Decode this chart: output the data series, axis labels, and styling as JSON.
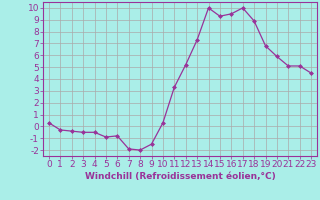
{
  "x": [
    0,
    1,
    2,
    3,
    4,
    5,
    6,
    7,
    8,
    9,
    10,
    11,
    12,
    13,
    14,
    15,
    16,
    17,
    18,
    19,
    20,
    21,
    22,
    23
  ],
  "y": [
    0.3,
    -0.3,
    -0.4,
    -0.5,
    -0.5,
    -0.9,
    -0.8,
    -1.9,
    -2.0,
    -1.5,
    0.3,
    3.3,
    5.2,
    7.3,
    10.0,
    9.3,
    9.5,
    10.0,
    8.9,
    6.8,
    5.9,
    5.1,
    5.1,
    4.5
  ],
  "line_color": "#993399",
  "marker": "D",
  "marker_size": 2.0,
  "bg_color": "#aaeee8",
  "grid_color": "#aaaaaa",
  "xlabel": "Windchill (Refroidissement éolien,°C)",
  "xlim": [
    -0.5,
    23.5
  ],
  "ylim": [
    -2.5,
    10.5
  ],
  "yticks": [
    -2,
    -1,
    0,
    1,
    2,
    3,
    4,
    5,
    6,
    7,
    8,
    9,
    10
  ],
  "xticks": [
    0,
    1,
    2,
    3,
    4,
    5,
    6,
    7,
    8,
    9,
    10,
    11,
    12,
    13,
    14,
    15,
    16,
    17,
    18,
    19,
    20,
    21,
    22,
    23
  ],
  "tick_color": "#993399",
  "label_color": "#993399",
  "spine_color": "#993399",
  "font_size": 6.5
}
